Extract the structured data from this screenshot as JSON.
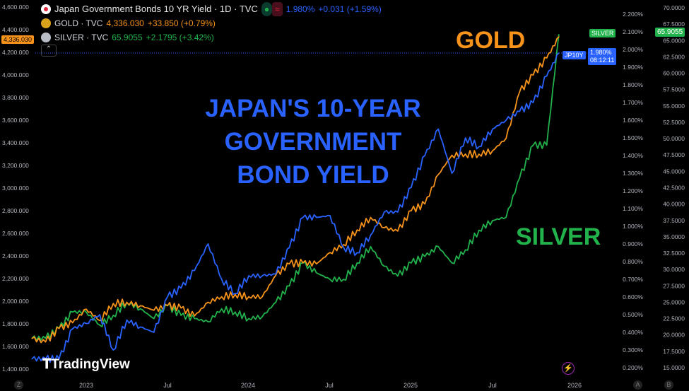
{
  "legend": {
    "main": {
      "title": "Japan Government Bonds 10 YR Yield · 1D · TVC",
      "value": "1.980%",
      "change": "+0.031 (+1.59%)"
    },
    "gold": {
      "title": "GOLD · TVC",
      "value": "4,336.030",
      "change": "+33.850 (+0.79%)"
    },
    "silver": {
      "title": "SILVER · TVC",
      "value": "65.9055",
      "change": "+2.1795 (+3.42%)"
    }
  },
  "tags": {
    "gold_price": "4,336.030",
    "silver_label": "SILVER",
    "silver_price": "65.9055",
    "jp_label": "JP10Y",
    "jp_price": "1.980%",
    "jp_countdown": "08:12:11"
  },
  "annotations": {
    "gold": "GOLD",
    "silver": "SILVER",
    "jp_line1": "JAPAN'S 10-YEAR",
    "jp_line2": "GOVERNMENT",
    "jp_line3": "BOND YIELD"
  },
  "logo": "TradingView",
  "bottom_buttons": {
    "z": "Z",
    "a": "A",
    "b": "B"
  },
  "colors": {
    "gold": "#f7931a",
    "silver": "#22b24c",
    "jp": "#2962ff",
    "bg": "#000000"
  },
  "chart_data": {
    "type": "line",
    "x": [
      "2022-09",
      "2022-10",
      "2022-11",
      "2022-12",
      "2023-01",
      "2023-02",
      "2023-03",
      "2023-04",
      "2023-05",
      "2023-06",
      "2023-07",
      "2023-08",
      "2023-09",
      "2023-10",
      "2023-11",
      "2023-12",
      "2024-01",
      "2024-02",
      "2024-03",
      "2024-04",
      "2024-05",
      "2024-06",
      "2024-07",
      "2024-08",
      "2024-09",
      "2024-10",
      "2024-11",
      "2024-12",
      "2025-01",
      "2025-02",
      "2025-03",
      "2025-04",
      "2025-05",
      "2025-06",
      "2025-07",
      "2025-08",
      "2025-09",
      "2025-10",
      "2025-11",
      "2025-12"
    ],
    "xticks": [
      "2023",
      "Jul",
      "2024",
      "Jul",
      "2025",
      "Jul",
      "2026"
    ],
    "series": [
      {
        "name": "GOLD",
        "axis": "left",
        "values": [
          1670,
          1640,
          1760,
          1810,
          1930,
          1830,
          1980,
          1990,
          1960,
          1920,
          1960,
          1940,
          1870,
          1990,
          2040,
          2060,
          2040,
          2040,
          2230,
          2330,
          2340,
          2330,
          2430,
          2500,
          2630,
          2740,
          2650,
          2620,
          2800,
          2860,
          3120,
          3290,
          3300,
          3300,
          3330,
          3440,
          3850,
          4000,
          4150,
          4336.03
        ]
      },
      {
        "name": "JP10Y",
        "axis": "middle",
        "values": [
          0.25,
          0.25,
          0.25,
          0.42,
          0.45,
          0.5,
          0.3,
          0.47,
          0.43,
          0.4,
          0.6,
          0.65,
          0.75,
          0.9,
          0.7,
          0.62,
          0.72,
          0.72,
          0.73,
          0.88,
          1.05,
          1.05,
          1.06,
          0.88,
          0.85,
          0.95,
          1.08,
          1.08,
          1.22,
          1.4,
          1.55,
          1.3,
          1.5,
          1.45,
          1.55,
          1.6,
          1.65,
          1.7,
          1.85,
          1.98
        ]
      },
      {
        "name": "SILVER",
        "axis": "right",
        "values": [
          19.5,
          19.5,
          21,
          23.5,
          23.5,
          21.5,
          23,
          25,
          24,
          22.5,
          24.5,
          23,
          22.5,
          22,
          24,
          23.5,
          22.5,
          22.8,
          25,
          27.5,
          31,
          29.5,
          28.5,
          28.5,
          31,
          33.5,
          30.5,
          29,
          31,
          32,
          33.5,
          31,
          33,
          36,
          37.5,
          38,
          44,
          49,
          49,
          65.9055
        ]
      }
    ],
    "left_axis": {
      "range": [
        1400,
        4600
      ],
      "ticks": [
        "1,400.000",
        "1,600.000",
        "1,800.000",
        "2,000.000",
        "2,200.000",
        "2,400.000",
        "2,600.000",
        "2,800.000",
        "3,000.000",
        "3,200.000",
        "3,400.000",
        "3,600.000",
        "3,800.000",
        "4,000.000",
        "4,200.000",
        "4,400.000",
        "4,600.000"
      ]
    },
    "middle_axis": {
      "range": [
        0.2,
        2.2
      ],
      "ticks": [
        "0.200%",
        "0.300%",
        "0.400%",
        "0.500%",
        "0.600%",
        "0.700%",
        "0.800%",
        "0.900%",
        "1.000%",
        "1.100%",
        "1.200%",
        "1.300%",
        "1.400%",
        "1.500%",
        "1.600%",
        "1.700%",
        "1.800%",
        "1.900%",
        "2.000%",
        "2.100%",
        "2.200%"
      ]
    },
    "right_axis": {
      "range": [
        15,
        70
      ],
      "ticks": [
        "15.0000",
        "17.5000",
        "20.0000",
        "22.5000",
        "25.0000",
        "27.5000",
        "30.0000",
        "32.5000",
        "35.0000",
        "37.5000",
        "40.0000",
        "42.5000",
        "45.0000",
        "47.5000",
        "50.0000",
        "52.5000",
        "55.0000",
        "57.5000",
        "60.0000",
        "62.5000",
        "65.0000",
        "67.5000",
        "70.0000"
      ]
    }
  }
}
